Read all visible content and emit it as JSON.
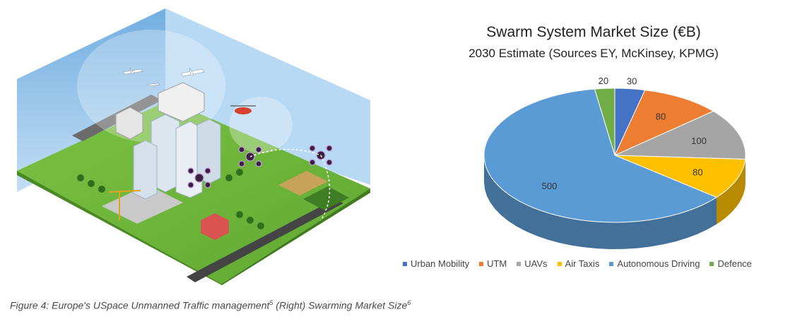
{
  "illustration": {
    "name": "uspace-traffic-illustration"
  },
  "caption": {
    "part1": "Figure 4: Europe's USpace Unmanned Traffic management",
    "ref1": "5",
    "part2": " (Right) Swarming Market Size",
    "ref2": "6"
  },
  "chart_data": {
    "type": "pie",
    "title": "Swarm System Market Size (€B)",
    "subtitle": "2030 Estimate (Sources EY, McKinsey, KPMG)",
    "categories": [
      "Urban Mobility",
      "UTM",
      "UAVs",
      "Air Taxis",
      "Autonomous Driving",
      "Defence"
    ],
    "values": [
      30,
      80,
      100,
      80,
      500,
      20
    ],
    "colors": [
      "#4472C4",
      "#ED7D31",
      "#A5A5A5",
      "#FFC000",
      "#5B9BD5",
      "#70AD47"
    ],
    "three_d": true,
    "legend_position": "bottom"
  }
}
